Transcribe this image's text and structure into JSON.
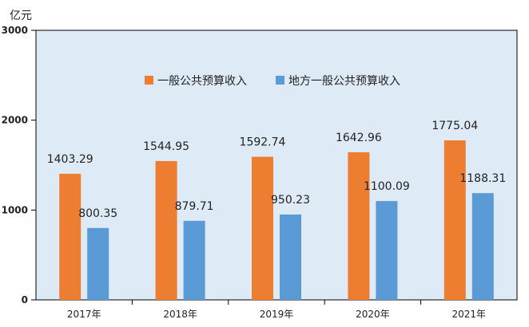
{
  "chart_data": {
    "type": "bar",
    "y_unit": "亿元",
    "ylim": [
      0,
      3000
    ],
    "y_ticks": [
      "0",
      "1000",
      "2000",
      "3000"
    ],
    "categories": [
      "2017年",
      "2018年",
      "2019年",
      "2020年",
      "2021年"
    ],
    "series": [
      {
        "name": "一般公共预算收入",
        "color": "#ED7D31",
        "values": [
          1403.29,
          1544.95,
          1592.74,
          1642.96,
          1775.04
        ],
        "labels": [
          "1403.29",
          "1544.95",
          "1592.74",
          "1642.96",
          "1775.04"
        ]
      },
      {
        "name": "地方一般公共预算收入",
        "color": "#5B9BD5",
        "values": [
          800.35,
          879.71,
          950.23,
          1100.09,
          1188.31
        ],
        "labels": [
          "800.35",
          "879.71",
          "950.23",
          "1100.09",
          "1188.31"
        ]
      }
    ],
    "legend_position": "top-center",
    "plot_background": "#DEEBF7",
    "grid": false
  }
}
